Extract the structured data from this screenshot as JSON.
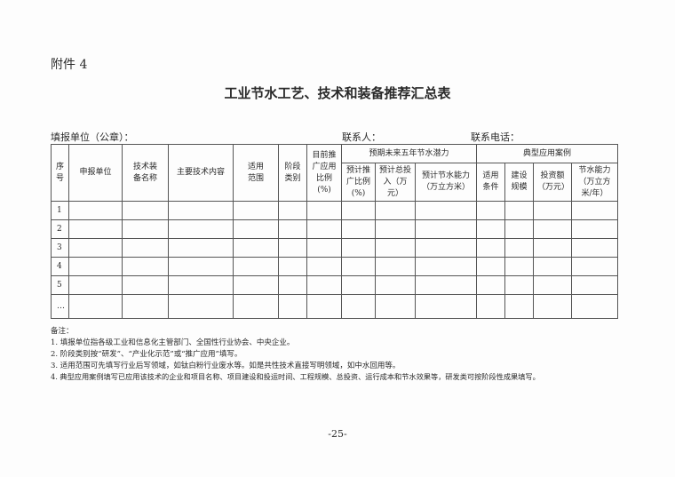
{
  "attachment": "附件 4",
  "title": "工业节水工艺、技术和装备推荐汇总表",
  "fill_line": {
    "unit": "填报单位（公章）：",
    "contact": "联系人：",
    "phone": "联系电话："
  },
  "table": {
    "headers": {
      "seq": "序号",
      "unit": "申报单位",
      "name": "技术装备名称",
      "content": "主要技术内容",
      "scope": "适用范围",
      "stage": "阶段类别",
      "current_ratio": "目前推广应用比例(%)",
      "potential_group": "预期未来五年节水潜力",
      "potential": [
        "预计推广比例(%)",
        "预计总投入（万元）",
        "预计节水能力（万立方米）"
      ],
      "case_group": "典型应用案例",
      "cases": [
        "适用条件",
        "建设规模",
        "投资额（万元）",
        "节水能力（万立方米/年）"
      ]
    },
    "rows": [
      "1",
      "2",
      "3",
      "4",
      "5",
      "…"
    ]
  },
  "notes": {
    "label": "备注：",
    "items": [
      "1. 填报单位指各级工业和信息化主管部门、全国性行业协会、中央企业。",
      "2. 阶段类别按“研发”、“产业化示范”或“推广应用”填写。",
      "3. 适用范围可先填写行业后写领域，如钛白粉行业废水等。如是共性技术直接写明领域，如中水回用等。",
      "4. 典型应用案例填写已应用该技术的企业和项目名称、项目建设和投运时间、工程规模、总投资、运行成本和节水效果等，研发类可按阶段性成果填写。"
    ]
  },
  "page_number": "-25-"
}
